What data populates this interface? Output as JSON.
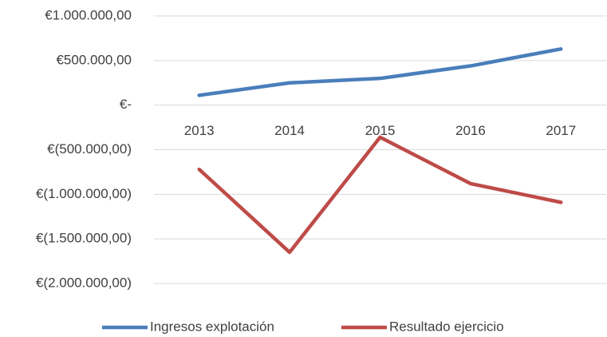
{
  "chart_data": {
    "type": "line",
    "categories": [
      "2013",
      "2014",
      "2015",
      "2016",
      "2017"
    ],
    "series": [
      {
        "name": "Ingresos explotación",
        "color": "#4a7ebb",
        "values": [
          110000,
          250000,
          300000,
          440000,
          630000
        ]
      },
      {
        "name": "Resultado ejercicio",
        "color": "#be4b48",
        "values": [
          -720000,
          -1650000,
          -360000,
          -880000,
          -1090000
        ]
      }
    ],
    "ylim": [
      -2000000,
      1000000
    ],
    "yticks": [
      {
        "value": -2000000,
        "label": "€(2.000.000,00)"
      },
      {
        "value": -1500000,
        "label": "€(1.500.000,00)"
      },
      {
        "value": -1000000,
        "label": "€(1.000.000,00)"
      },
      {
        "value": -500000,
        "label": "€(500.000,00)"
      },
      {
        "value": 0,
        "label": "€-"
      },
      {
        "value": 500000,
        "label": "€500.000,00"
      },
      {
        "value": 1000000,
        "label": "€1.000.000,00"
      }
    ],
    "grid": true,
    "legend": "bottom"
  }
}
